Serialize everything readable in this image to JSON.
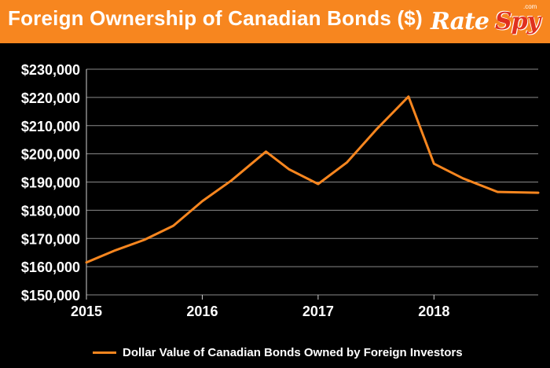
{
  "header": {
    "title": "Foreign Ownership of Canadian Bonds ($)",
    "logo_left": "Rate",
    "logo_right": "Spy",
    "logo_sup": ".com"
  },
  "colors": {
    "header_bg": "#f7861f",
    "background": "#000000",
    "series": "#f7861f",
    "grid": "#8a8a8a"
  },
  "chart_data": {
    "type": "line",
    "title": "Foreign Ownership of Canadian Bonds ($)",
    "xlabel": "",
    "ylabel": "",
    "xlim": [
      2015.0,
      2018.9
    ],
    "ylim": [
      150000,
      230000
    ],
    "y_ticks": [
      {
        "value": 230000,
        "label": "$230,000"
      },
      {
        "value": 220000,
        "label": "$220,000"
      },
      {
        "value": 210000,
        "label": "$210,000"
      },
      {
        "value": 200000,
        "label": "$200,000"
      },
      {
        "value": 190000,
        "label": "$190,000"
      },
      {
        "value": 180000,
        "label": "$180,000"
      },
      {
        "value": 170000,
        "label": "$170,000"
      },
      {
        "value": 160000,
        "label": "$160,000"
      },
      {
        "value": 150000,
        "label": "$150,000"
      }
    ],
    "x_ticks": [
      {
        "value": 2015,
        "label": "2015"
      },
      {
        "value": 2016,
        "label": "2016"
      },
      {
        "value": 2017,
        "label": "2017"
      },
      {
        "value": 2018,
        "label": "2018"
      }
    ],
    "grid": true,
    "legend_position": "bottom",
    "series": [
      {
        "name": "Dollar Value of Canadian Bonds Owned by Foreign Investors",
        "x": [
          2015.0,
          2015.25,
          2015.5,
          2015.75,
          2016.0,
          2016.25,
          2016.55,
          2016.75,
          2017.0,
          2017.25,
          2017.5,
          2017.78,
          2018.0,
          2018.25,
          2018.55,
          2018.9
        ],
        "values": [
          161500,
          165800,
          169500,
          174500,
          183200,
          190500,
          200800,
          194500,
          189300,
          197000,
          208500,
          220300,
          196500,
          191300,
          186500,
          186200
        ]
      }
    ]
  }
}
